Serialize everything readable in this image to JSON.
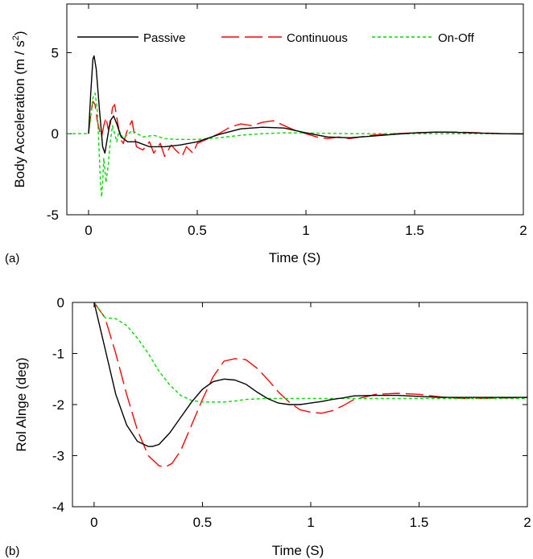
{
  "chart_data": [
    {
      "type": "line",
      "panel_label": "(a)",
      "xlabel": "Time (S)",
      "ylabel_main": "Body Acceleration (m / s",
      "ylabel_sup": "2",
      "ylabel_tail": ")",
      "xlim": [
        -0.1,
        2
      ],
      "ylim": [
        -5,
        8
      ],
      "xticks": [
        0,
        0.5,
        1,
        1.5,
        2
      ],
      "xtick_labels": [
        "0",
        "0.5",
        "1",
        "1.5",
        "2"
      ],
      "yticks": [
        -5,
        0,
        5
      ],
      "ytick_labels": [
        "-5",
        "0",
        "5"
      ],
      "legend_position": "top",
      "series": [
        {
          "name": "Passive",
          "color": "#000000",
          "style": "solid",
          "x": [
            0,
            0.01,
            0.02,
            0.025,
            0.035,
            0.05,
            0.065,
            0.075,
            0.085,
            0.1,
            0.115,
            0.13,
            0.15,
            0.18,
            0.22,
            0.28,
            0.35,
            0.42,
            0.5,
            0.6,
            0.7,
            0.8,
            0.9,
            1.0,
            1.1,
            1.2,
            1.3,
            1.4,
            1.5,
            1.6,
            1.7,
            1.8,
            1.9,
            2.0
          ],
          "y": [
            0,
            2.5,
            4.6,
            4.8,
            4.0,
            1.5,
            -0.8,
            -1.2,
            -0.4,
            0.8,
            1.1,
            0.6,
            -0.2,
            -0.5,
            -0.5,
            -0.8,
            -0.8,
            -0.7,
            -0.5,
            -0.05,
            0.3,
            0.4,
            0.35,
            0.05,
            -0.2,
            -0.25,
            -0.15,
            -0.05,
            0.05,
            0.1,
            0.08,
            0.04,
            0.0,
            -0.02
          ]
        },
        {
          "name": "Continuous",
          "color": "#ff0000",
          "style": "dashed",
          "x": [
            0,
            0.01,
            0.02,
            0.03,
            0.04,
            0.05,
            0.06,
            0.07,
            0.08,
            0.09,
            0.1,
            0.11,
            0.12,
            0.13,
            0.14,
            0.15,
            0.16,
            0.18,
            0.2,
            0.22,
            0.25,
            0.28,
            0.3,
            0.33,
            0.35,
            0.38,
            0.4,
            0.43,
            0.45,
            0.48,
            0.5,
            0.55,
            0.6,
            0.65,
            0.7,
            0.75,
            0.8,
            0.85,
            0.9,
            0.95,
            1.0,
            1.05,
            1.1,
            1.15,
            1.2,
            1.25,
            1.3,
            1.4,
            1.5,
            1.6,
            1.7,
            1.8,
            1.9,
            2.0
          ],
          "y": [
            0,
            1.2,
            2.0,
            1.8,
            0.8,
            0.2,
            -0.2,
            0.5,
            1.0,
            0.3,
            0.6,
            1.6,
            1.8,
            1.0,
            0.2,
            -0.4,
            -0.6,
            0.3,
            0.8,
            -0.8,
            -1.0,
            -0.5,
            -1.2,
            -0.6,
            -1.4,
            -0.7,
            -1.0,
            -1.4,
            -0.8,
            -1.2,
            -0.6,
            -0.3,
            0.0,
            0.4,
            0.6,
            0.5,
            0.7,
            0.8,
            0.5,
            0.2,
            0.0,
            -0.2,
            -0.3,
            -0.2,
            -0.3,
            -0.2,
            -0.1,
            0.0,
            0.05,
            0.1,
            0.1,
            0.05,
            0.0,
            0.0
          ]
        },
        {
          "name": "On-Off",
          "color": "#00dd00",
          "style": "dotted",
          "x": [
            -0.1,
            0,
            0.01,
            0.02,
            0.03,
            0.04,
            0.05,
            0.055,
            0.06,
            0.065,
            0.07,
            0.08,
            0.09,
            0.1,
            0.11,
            0.12,
            0.13,
            0.14,
            0.16,
            0.2,
            0.25,
            0.3,
            0.35,
            0.4,
            0.5,
            0.6,
            0.7,
            0.8,
            0.9,
            1.0,
            1.2,
            1.4,
            1.6,
            1.8,
            2.0
          ],
          "y": [
            0,
            0,
            1.0,
            2.2,
            2.5,
            1.5,
            -1.5,
            -3.0,
            -3.9,
            -3.0,
            -1.5,
            -3.0,
            -2.0,
            -0.5,
            0.5,
            0.0,
            -0.5,
            0.2,
            -0.3,
            0.2,
            -0.2,
            -0.1,
            -0.3,
            -0.35,
            -0.35,
            -0.25,
            -0.1,
            0.0,
            0.05,
            0.05,
            0.0,
            0.0,
            0.0,
            0.0,
            0.0
          ]
        }
      ]
    },
    {
      "type": "line",
      "panel_label": "(b)",
      "xlabel": "Time (S)",
      "ylabel_main": "Rol Alnge (deg)",
      "xlim": [
        -0.1,
        2
      ],
      "ylim": [
        -4,
        0
      ],
      "xticks": [
        0,
        0.5,
        1,
        1.5,
        2
      ],
      "xtick_labels": [
        "0",
        "0.5",
        "1",
        "1.5",
        "2"
      ],
      "yticks": [
        -4,
        -3,
        -2,
        -1,
        0
      ],
      "ytick_labels": [
        "-4",
        "-3",
        "-2",
        "-1",
        "0"
      ],
      "series": [
        {
          "name": "Passive",
          "color": "#000000",
          "style": "solid",
          "x": [
            0,
            0.05,
            0.1,
            0.15,
            0.2,
            0.25,
            0.27,
            0.3,
            0.35,
            0.4,
            0.45,
            0.5,
            0.55,
            0.6,
            0.65,
            0.7,
            0.75,
            0.8,
            0.85,
            0.9,
            0.95,
            1.0,
            1.05,
            1.1,
            1.15,
            1.2,
            1.3,
            1.4,
            1.5,
            1.6,
            1.7,
            1.8,
            1.9,
            2.0
          ],
          "y": [
            0,
            -0.9,
            -1.8,
            -2.4,
            -2.72,
            -2.82,
            -2.82,
            -2.78,
            -2.55,
            -2.25,
            -1.95,
            -1.7,
            -1.55,
            -1.5,
            -1.52,
            -1.6,
            -1.75,
            -1.88,
            -1.97,
            -2.0,
            -2.0,
            -1.97,
            -1.94,
            -1.9,
            -1.87,
            -1.83,
            -1.82,
            -1.82,
            -1.84,
            -1.86,
            -1.86,
            -1.86,
            -1.86,
            -1.86
          ]
        },
        {
          "name": "Continuous",
          "color": "#ff0000",
          "style": "dashed",
          "x": [
            0,
            0.05,
            0.1,
            0.15,
            0.2,
            0.25,
            0.3,
            0.33,
            0.36,
            0.4,
            0.45,
            0.5,
            0.55,
            0.6,
            0.65,
            0.7,
            0.75,
            0.8,
            0.85,
            0.9,
            0.95,
            1.0,
            1.05,
            1.1,
            1.15,
            1.2,
            1.3,
            1.4,
            1.5,
            1.6,
            1.7,
            1.8,
            1.9,
            2.0
          ],
          "y": [
            0,
            -0.3,
            -1.0,
            -1.8,
            -2.5,
            -3.0,
            -3.2,
            -3.22,
            -3.15,
            -2.9,
            -2.4,
            -1.9,
            -1.45,
            -1.15,
            -1.1,
            -1.12,
            -1.28,
            -1.5,
            -1.75,
            -1.95,
            -2.1,
            -2.15,
            -2.17,
            -2.12,
            -2.02,
            -1.9,
            -1.8,
            -1.78,
            -1.8,
            -1.85,
            -1.88,
            -1.88,
            -1.87,
            -1.86
          ]
        },
        {
          "name": "On-Off",
          "color": "#00dd00",
          "style": "dotted",
          "x": [
            0,
            0.05,
            0.1,
            0.15,
            0.2,
            0.25,
            0.3,
            0.35,
            0.4,
            0.45,
            0.5,
            0.55,
            0.6,
            0.65,
            0.7,
            0.8,
            0.9,
            1.0,
            1.2,
            1.4,
            1.6,
            1.8,
            2.0
          ],
          "y": [
            0,
            -0.3,
            -0.32,
            -0.45,
            -0.7,
            -1.0,
            -1.35,
            -1.62,
            -1.82,
            -1.92,
            -1.95,
            -1.95,
            -1.95,
            -1.93,
            -1.9,
            -1.88,
            -1.88,
            -1.88,
            -1.88,
            -1.88,
            -1.88,
            -1.88,
            -1.88
          ]
        }
      ]
    }
  ]
}
